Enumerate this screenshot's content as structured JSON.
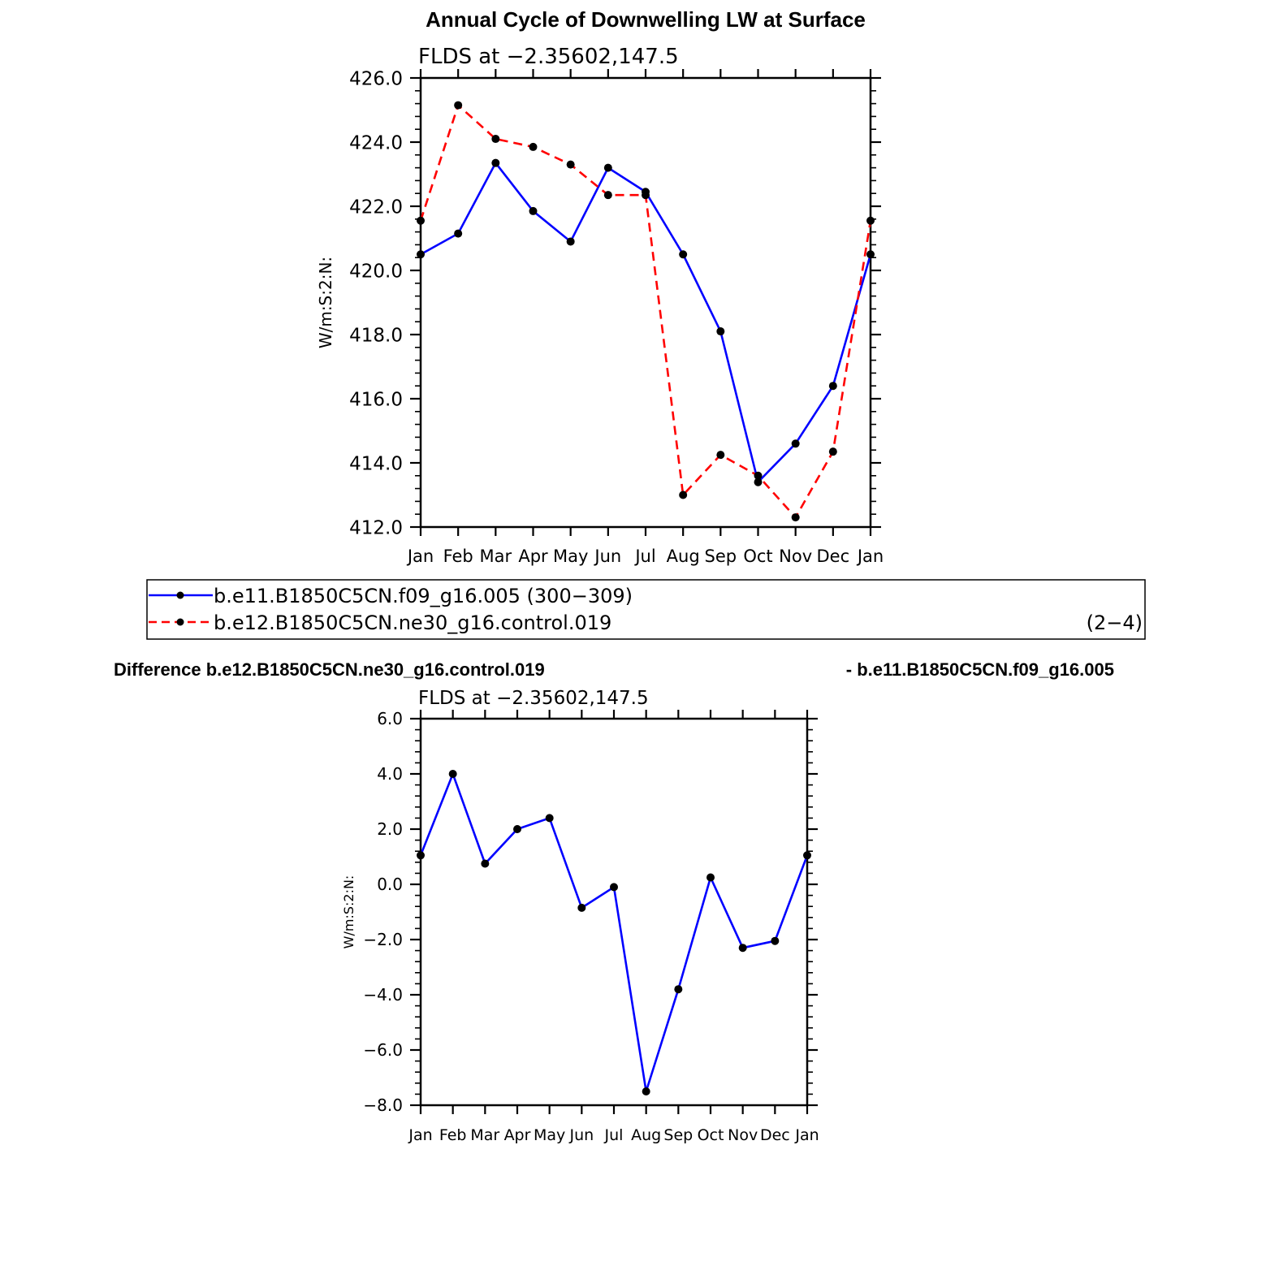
{
  "figure": {
    "title": "Annual Cycle of Downwelling LW at Surface",
    "diff_title_left": "Difference b.e12.B1850C5CN.ne30_g16.control.019",
    "diff_title_right": "- b.e11.B1850C5CN.f09_g16.005"
  },
  "legend": {
    "entries": [
      {
        "label": "b.e11.B1850C5CN.f09_g16.005 (300−309)",
        "suffix": ""
      },
      {
        "label": "b.e12.B1850C5CN.ne30_g16.control.019",
        "suffix": "(2−4)"
      }
    ]
  },
  "chart_data": [
    {
      "type": "line",
      "title": "FLDS at −2.35602,147.5",
      "ylabel": "W/m:S:2:N:",
      "xlabel": "",
      "categories": [
        "Jan",
        "Feb",
        "Mar",
        "Apr",
        "May",
        "Jun",
        "Jul",
        "Aug",
        "Sep",
        "Oct",
        "Nov",
        "Dec",
        "Jan"
      ],
      "ylim": [
        412.0,
        426.0
      ],
      "yticks": [
        "412.0",
        "414.0",
        "416.0",
        "418.0",
        "420.0",
        "422.0",
        "424.0",
        "426.0"
      ],
      "grid": false,
      "legend": "below",
      "series": [
        {
          "name": "b.e11.B1850C5CN.f09_g16.005 (300−309)",
          "color": "#0000ff",
          "style": "solid",
          "values": [
            420.5,
            421.15,
            423.35,
            421.85,
            420.9,
            423.2,
            422.45,
            420.5,
            418.1,
            413.4,
            414.6,
            416.4,
            420.5
          ]
        },
        {
          "name": "b.e12.B1850C5CN.ne30_g16.control.019",
          "color": "#ff0000",
          "style": "dashed",
          "values": [
            421.55,
            425.15,
            424.1,
            423.85,
            423.3,
            422.35,
            422.35,
            413.0,
            414.25,
            413.6,
            412.3,
            414.35,
            421.55
          ]
        }
      ]
    },
    {
      "type": "line",
      "title": "FLDS at −2.35602,147.5",
      "ylabel": "W/m:S:2:N:",
      "xlabel": "",
      "categories": [
        "Jan",
        "Feb",
        "Mar",
        "Apr",
        "May",
        "Jun",
        "Jul",
        "Aug",
        "Sep",
        "Oct",
        "Nov",
        "Dec",
        "Jan"
      ],
      "ylim": [
        -8.0,
        6.0
      ],
      "yticks": [
        "−8.0",
        "−6.0",
        "−4.0",
        "−2.0",
        "0.0",
        "2.0",
        "4.0",
        "6.0"
      ],
      "grid": false,
      "series": [
        {
          "name": "",
          "color": "#0000ff",
          "style": "solid",
          "values": [
            1.05,
            4.0,
            0.75,
            2.0,
            2.4,
            -0.85,
            -0.1,
            -7.5,
            -3.8,
            0.25,
            -2.3,
            -2.05,
            1.05
          ]
        }
      ]
    }
  ]
}
